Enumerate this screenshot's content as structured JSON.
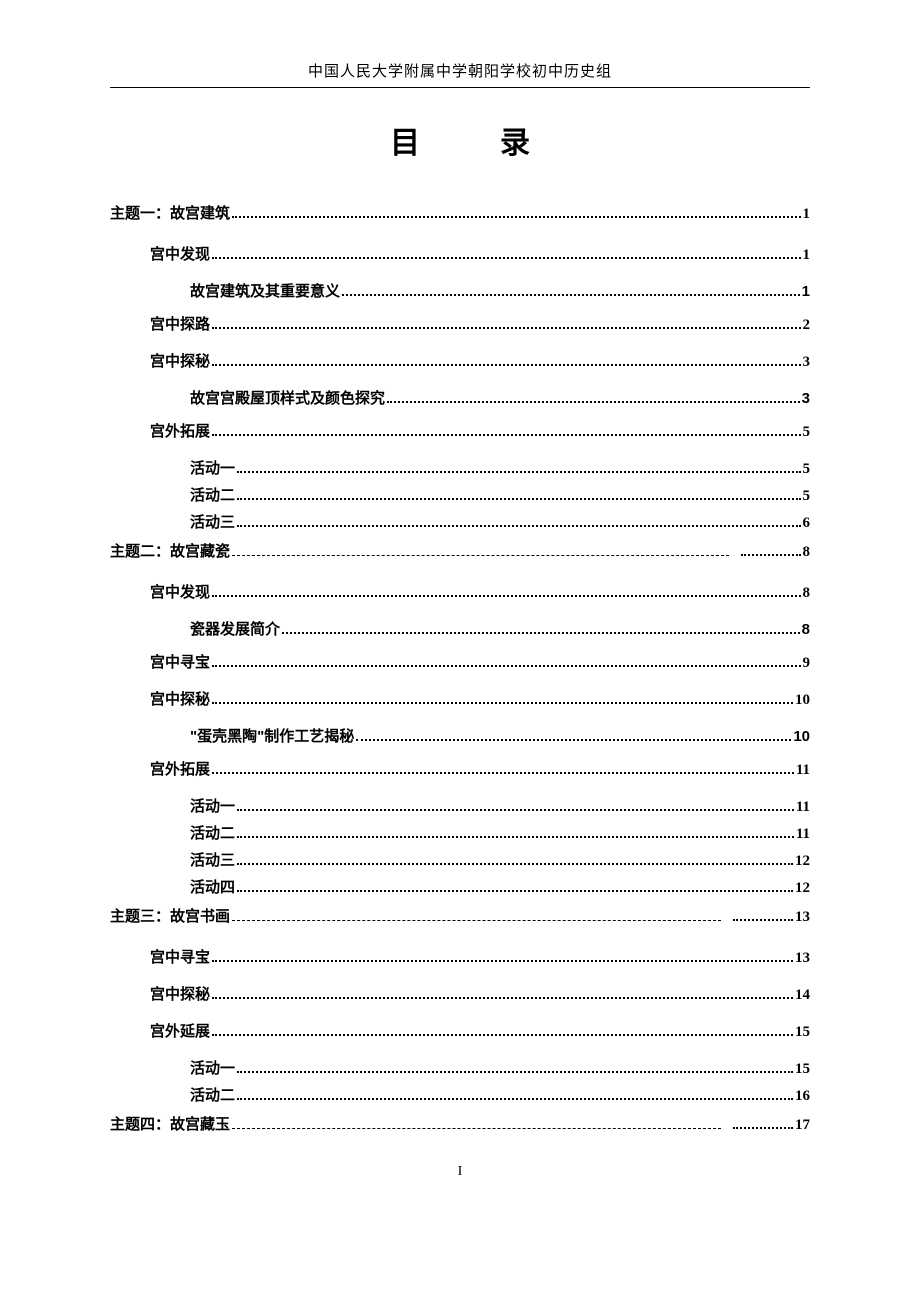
{
  "header": "中国人民大学附属中学朝阳学校初中历史组",
  "title": "目录",
  "footer": "I",
  "entries": [
    {
      "level": 1,
      "style": "theme",
      "label": "主题一：故宫建筑",
      "page": "1",
      "leader": "dots"
    },
    {
      "level": 2,
      "style": "level-2",
      "label": "宫中发现",
      "page": "1",
      "leader": "dots"
    },
    {
      "level": 3,
      "style": "level-3",
      "label": "故宫建筑及其重要意义",
      "page": "1",
      "leader": "dots"
    },
    {
      "level": 2,
      "style": "level-2",
      "label": "宫中探路",
      "page": "2",
      "leader": "dots"
    },
    {
      "level": 2,
      "style": "level-2",
      "label": "宫中探秘",
      "page": "3",
      "leader": "dots"
    },
    {
      "level": 3,
      "style": "level-3",
      "label": "故宫宫殿屋顶样式及颜色探究",
      "page": "3",
      "leader": "dots"
    },
    {
      "level": 2,
      "style": "level-2",
      "label": "宫外拓展",
      "page": "5",
      "leader": "dots"
    },
    {
      "level": 3,
      "style": "level-3-kai",
      "label": "活动一",
      "page": "5",
      "leader": "dots"
    },
    {
      "level": 3,
      "style": "level-3-kai",
      "label": "活动二",
      "page": "5",
      "leader": "dots"
    },
    {
      "level": 3,
      "style": "level-3-kai",
      "label": "活动三",
      "page": "6",
      "leader": "dots"
    },
    {
      "level": 1,
      "style": "theme",
      "label": "主题二：故宫藏瓷",
      "page": "8",
      "leader": "dashes"
    },
    {
      "level": 2,
      "style": "level-2",
      "label": "宫中发现",
      "page": "8",
      "leader": "dots"
    },
    {
      "level": 3,
      "style": "level-3",
      "label": "瓷器发展简介",
      "page": "8",
      "leader": "dots"
    },
    {
      "level": 2,
      "style": "level-2",
      "label": "宫中寻宝",
      "page": "9",
      "leader": "dots"
    },
    {
      "level": 2,
      "style": "level-2",
      "label": "宫中探秘",
      "page": "10",
      "leader": "dots"
    },
    {
      "level": 3,
      "style": "level-3",
      "label": "\"蛋壳黑陶\"制作工艺揭秘",
      "page": "10",
      "leader": "dots"
    },
    {
      "level": 2,
      "style": "level-2",
      "label": "宫外拓展",
      "page": "11",
      "leader": "dots"
    },
    {
      "level": 3,
      "style": "level-3-kai",
      "label": "活动一",
      "page": "11",
      "leader": "dots"
    },
    {
      "level": 3,
      "style": "level-3-kai",
      "label": "活动二",
      "page": "11",
      "leader": "dots"
    },
    {
      "level": 3,
      "style": "level-3-kai",
      "label": "活动三",
      "page": "12",
      "leader": "dots"
    },
    {
      "level": 3,
      "style": "level-3-kai",
      "label": "活动四",
      "page": "12",
      "leader": "dots"
    },
    {
      "level": 1,
      "style": "theme",
      "label": "主题三：故宫书画",
      "page": "13",
      "leader": "dashes"
    },
    {
      "level": 2,
      "style": "level-2",
      "label": "宫中寻宝",
      "page": "13",
      "leader": "dots"
    },
    {
      "level": 2,
      "style": "level-2",
      "label": "宫中探秘",
      "page": "14",
      "leader": "dots"
    },
    {
      "level": 2,
      "style": "level-2",
      "label": "宫外延展",
      "page": "15",
      "leader": "dots"
    },
    {
      "level": 3,
      "style": "level-3-kai",
      "label": "活动一",
      "page": "15",
      "leader": "dots"
    },
    {
      "level": 3,
      "style": "level-3-kai",
      "label": "活动二",
      "page": "16",
      "leader": "dots"
    },
    {
      "level": 1,
      "style": "theme",
      "label": "主题四：故宫藏玉",
      "page": "17",
      "leader": "dashes"
    }
  ]
}
